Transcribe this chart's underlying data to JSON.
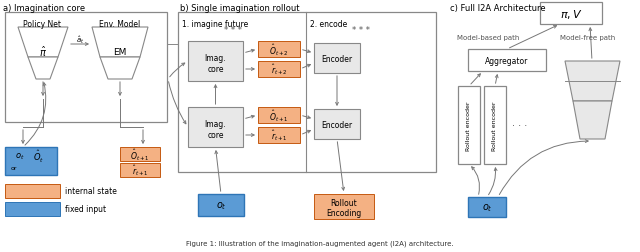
{
  "bg": "#ffffff",
  "lb": "#5b9bd5",
  "lo": "#f4b183",
  "lg": "#e8e8e8",
  "ec_gray": "#888888",
  "ec_blue": "#2e75b6",
  "ec_orange": "#c55a11",
  "arr": "#777777",
  "sec_a": "a) Imagination core",
  "sec_b": "b) Single imagination rollout",
  "sec_c": "c) Full I2A Architecture",
  "caption": "Figure 1: Illustration of the imagination-augmented agent (I2A) architecture.",
  "internal_state": "internal state",
  "fixed_input": "fixed input",
  "model_based": "Model-based path",
  "model_free": "Model-free path"
}
